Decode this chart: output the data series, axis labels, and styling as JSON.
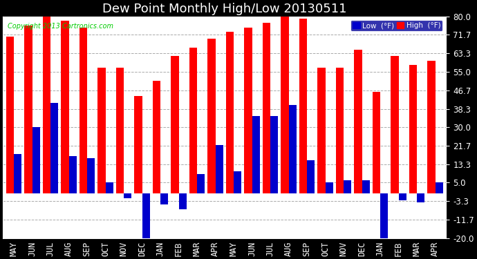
{
  "title": "Dew Point Monthly High/Low 20130511",
  "copyright": "Copyright 2013 Cartronics.com",
  "months": [
    "MAY",
    "JUN",
    "JUL",
    "AUG",
    "SEP",
    "OCT",
    "NOV",
    "DEC",
    "JAN",
    "FEB",
    "MAR",
    "APR",
    "MAY",
    "JUN",
    "JUL",
    "AUG",
    "SEP",
    "OCT",
    "NOV",
    "DEC",
    "JAN",
    "FEB",
    "MAR",
    "APR"
  ],
  "high": [
    71,
    76,
    80,
    78,
    75,
    57,
    57,
    44,
    51,
    62,
    66,
    70,
    73,
    75,
    77,
    80,
    79,
    57,
    57,
    65,
    46,
    62,
    58,
    60
  ],
  "low": [
    18,
    30,
    41,
    17,
    16,
    5,
    -2,
    -20,
    -5,
    -7,
    9,
    22,
    10,
    35,
    35,
    40,
    15,
    5,
    6,
    6,
    -20,
    -3,
    -4,
    5
  ],
  "high_color": "#ff0000",
  "low_color": "#0000cc",
  "bg_color": "#000000",
  "plot_bg_color": "#ffffff",
  "grid_color": "#aaaaaa",
  "ylim": [
    -20,
    80
  ],
  "yticks": [
    -20.0,
    -11.7,
    -3.3,
    5.0,
    13.3,
    21.7,
    30.0,
    38.3,
    46.7,
    55.0,
    63.3,
    71.7,
    80.0
  ],
  "title_fontsize": 13,
  "tick_fontsize": 8.5,
  "bar_width": 0.42,
  "legend_facecolor": "#000099"
}
